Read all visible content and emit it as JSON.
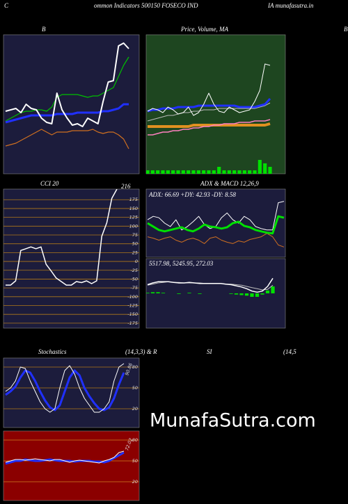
{
  "header": {
    "left": "C",
    "title": "ommon Indicators 500150 FOSECO IND",
    "site": "IA munafasutra.in",
    "right_label": "B",
    "row2": [
      "Stochastics",
      "(14,3,3) & R",
      "SI",
      "(14,5"
    ]
  },
  "watermark": "MunafaSutra.com",
  "chart_data": [
    {
      "type": "line",
      "title": "B",
      "background": "#1c1c3c",
      "ylim": [
        0,
        100
      ],
      "series": [
        {
          "color": "#00c000",
          "width": 1.2,
          "values": [
            38,
            40,
            42,
            44,
            45,
            45,
            46,
            46,
            45,
            48,
            55,
            57,
            57,
            57,
            57,
            56,
            55,
            56,
            56,
            58,
            60,
            62,
            70,
            78,
            84
          ]
        },
        {
          "color": "#2030ff",
          "width": 3,
          "values": [
            37,
            38,
            39,
            40,
            41,
            42,
            42,
            42,
            42,
            42,
            43,
            43,
            43,
            43,
            44,
            44,
            44,
            44,
            44,
            45,
            45,
            46,
            47,
            50,
            50
          ]
        },
        {
          "color": "#d07020",
          "width": 1.2,
          "values": [
            20,
            21,
            22,
            24,
            26,
            28,
            30,
            32,
            30,
            28,
            30,
            30,
            30,
            31,
            31,
            31,
            31,
            32,
            30,
            29,
            30,
            30,
            28,
            25,
            18
          ]
        },
        {
          "color": "#ffffff",
          "width": 2,
          "values": [
            45,
            46,
            47,
            44,
            50,
            47,
            46,
            40,
            37,
            36,
            58,
            46,
            40,
            35,
            36,
            34,
            40,
            38,
            36,
            52,
            66,
            67,
            92,
            94,
            90
          ]
        }
      ]
    },
    {
      "type": "line",
      "title": "Price, Volume, MA",
      "background": "#1e4620",
      "ylim": [
        0,
        100
      ],
      "y2lim": [
        0,
        40
      ],
      "series": [
        {
          "color": "#00e000",
          "style": "bar",
          "axis": "y2",
          "values": [
            1,
            1,
            1,
            1,
            1,
            1,
            1,
            1,
            1,
            1,
            1,
            1,
            1,
            1,
            2,
            1,
            1,
            1,
            1,
            1,
            1,
            1,
            4,
            3,
            2
          ]
        },
        {
          "color": "#e09020",
          "width": 4,
          "values": [
            34,
            34,
            34,
            34,
            34,
            34,
            34,
            34,
            34,
            35,
            35,
            35,
            35,
            35,
            35,
            35,
            35,
            35,
            35,
            35,
            35,
            35,
            35,
            35,
            36
          ]
        },
        {
          "color": "#ff80c0",
          "width": 1.5,
          "values": [
            28,
            28,
            29,
            30,
            30,
            31,
            31,
            32,
            32,
            33,
            33,
            34,
            34,
            35,
            35,
            36,
            36,
            36,
            37,
            37,
            37,
            38,
            38,
            38,
            39
          ]
        },
        {
          "color": "#bbbbbb",
          "width": 1,
          "values": [
            38,
            39,
            40,
            41,
            42,
            42,
            43,
            44,
            44,
            45,
            45,
            46,
            46,
            46,
            47,
            47,
            47,
            47,
            47,
            47,
            47,
            47,
            48,
            49,
            51
          ]
        },
        {
          "color": "#2030ff",
          "width": 3,
          "values": [
            45,
            46,
            46,
            47,
            47,
            47,
            48,
            48,
            48,
            48,
            49,
            49,
            49,
            49,
            49,
            49,
            49,
            49,
            48,
            48,
            48,
            48,
            49,
            50,
            54
          ]
        },
        {
          "color": "#ffffff",
          "width": 1,
          "values": [
            45,
            47,
            46,
            44,
            48,
            46,
            43,
            44,
            48,
            42,
            44,
            50,
            58,
            50,
            45,
            44,
            48,
            46,
            44,
            45,
            46,
            52,
            60,
            79,
            78
          ]
        }
      ]
    },
    {
      "type": "line",
      "title": "CCI 20",
      "annotation": "216",
      "background": "#1c1c3c",
      "ylim": [
        -189,
        205
      ],
      "yticks": [
        175,
        150,
        125,
        100,
        75,
        50,
        25,
        0,
        -25,
        -50,
        -75,
        -100,
        -125,
        -150,
        -175
      ],
      "grid_color": "#b07818",
      "series": [
        {
          "color": "#ffffff",
          "width": 1.5,
          "values": [
            -67,
            -67,
            -55,
            31,
            36,
            41,
            36,
            41,
            -8,
            -27,
            -47,
            -57,
            -67,
            -67,
            -57,
            -60,
            -55,
            -63,
            -55,
            71,
            110,
            179,
            205
          ]
        }
      ]
    },
    {
      "type": "line",
      "title": "ADX  & MACD 12,26,9",
      "subtitle": "ADX: 66.69 +DY: 42.93 -DY: 8.58",
      "background": "#1c1c3c",
      "ylim": [
        0,
        100
      ],
      "series": [
        {
          "color": "#d07020",
          "width": 1,
          "values": [
            30,
            28,
            25,
            28,
            30,
            25,
            22,
            26,
            28,
            25,
            20,
            28,
            30,
            25,
            22,
            20,
            24,
            22,
            26,
            28,
            30,
            35,
            30,
            18,
            15
          ]
        },
        {
          "color": "#ffffff",
          "width": 1,
          "values": [
            55,
            60,
            58,
            50,
            45,
            55,
            40,
            45,
            52,
            60,
            48,
            42,
            45,
            58,
            65,
            55,
            50,
            60,
            55,
            45,
            42,
            40,
            40,
            80,
            82
          ]
        },
        {
          "color": "#00e000",
          "width": 3,
          "values": [
            50,
            45,
            40,
            38,
            40,
            42,
            44,
            40,
            38,
            42,
            48,
            45,
            44,
            42,
            44,
            50,
            52,
            46,
            44,
            40,
            38,
            36,
            35,
            60,
            58
          ]
        }
      ]
    },
    {
      "type": "line",
      "title": "5517.98, 5245.95, 272.03",
      "background": "#1c1c3c",
      "ylim": [
        -60,
        60
      ],
      "series": [
        {
          "color": "#00e000",
          "style": "bar",
          "values": [
            1,
            2,
            2,
            1,
            0,
            0,
            -1,
            0,
            1,
            0,
            -1,
            0,
            0,
            0,
            0,
            0,
            -1,
            -2,
            -3,
            -4,
            -6,
            -6,
            -2,
            5,
            12
          ]
        },
        {
          "color": "#bbbbbb",
          "width": 1,
          "values": [
            14,
            16,
            18,
            19,
            20,
            19,
            19,
            18,
            18,
            18,
            18,
            17,
            17,
            17,
            17,
            16,
            16,
            15,
            14,
            12,
            10,
            8,
            6,
            7,
            14
          ]
        },
        {
          "color": "#ffffff",
          "width": 1.5,
          "values": [
            15,
            18,
            20,
            20,
            20,
            19,
            18,
            18,
            19,
            18,
            17,
            17,
            17,
            17,
            17,
            16,
            15,
            13,
            11,
            8,
            4,
            2,
            4,
            12,
            26
          ]
        }
      ]
    },
    {
      "type": "line",
      "annotation": "90.86",
      "background": "#1c1c3c",
      "ylim": [
        -7,
        93
      ],
      "yticks": [
        80,
        50,
        20
      ],
      "grid_color": "#b07818",
      "series": [
        {
          "color": "#2030ff",
          "width": 3,
          "values": [
            40,
            45,
            52,
            65,
            75,
            72,
            60,
            45,
            32,
            22,
            18,
            25,
            45,
            65,
            75,
            68,
            50,
            38,
            28,
            20,
            18,
            22,
            35,
            55,
            72
          ]
        },
        {
          "color": "#ffffff",
          "width": 1,
          "values": [
            45,
            50,
            60,
            80,
            78,
            60,
            45,
            30,
            20,
            15,
            20,
            50,
            75,
            82,
            70,
            50,
            35,
            25,
            15,
            15,
            20,
            30,
            60,
            80,
            85
          ]
        }
      ]
    },
    {
      "type": "line",
      "annotation": "72.02",
      "background": "#8b0000",
      "ylim": [
        -7,
        93
      ],
      "yticks": [
        80,
        50,
        20
      ],
      "grid_color": "#d08020",
      "series": [
        {
          "color": "#2030ff",
          "width": 3,
          "values": [
            46,
            48,
            50,
            50,
            52,
            51,
            50,
            50,
            51,
            52,
            51,
            50,
            50,
            50,
            49,
            50,
            50,
            50,
            49,
            49,
            48,
            50,
            54,
            58,
            62
          ]
        },
        {
          "color": "#ffffff",
          "width": 1,
          "values": [
            48,
            50,
            52,
            52,
            51,
            52,
            53,
            52,
            51,
            50,
            52,
            52,
            50,
            48,
            50,
            51,
            50,
            49,
            48,
            47,
            50,
            52,
            55,
            62,
            64
          ]
        }
      ]
    }
  ]
}
